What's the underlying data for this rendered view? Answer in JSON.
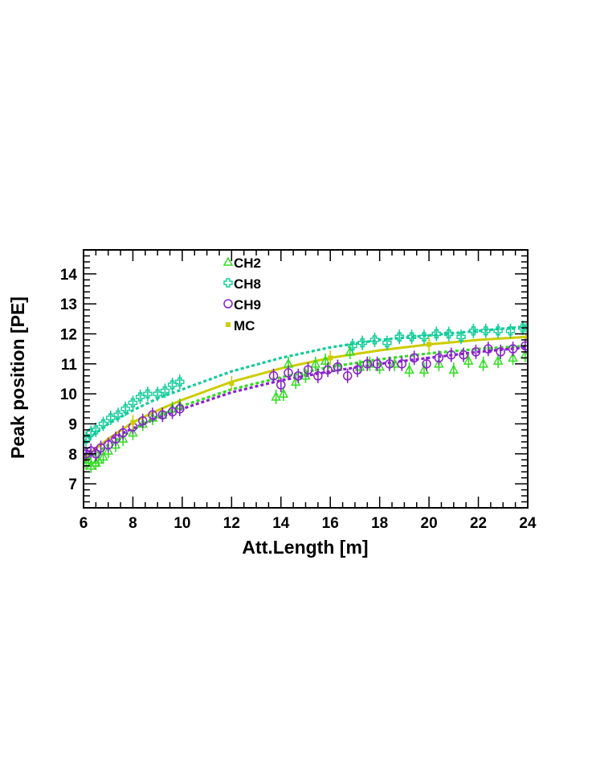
{
  "chart_data": {
    "type": "scatter",
    "title": "",
    "xlabel": "Att.Length [m]",
    "ylabel": "Peak position [PE]",
    "xlim": [
      6,
      24
    ],
    "ylim": [
      6.2,
      14.8
    ],
    "x_ticks": [
      "6",
      "8",
      "10",
      "12",
      "14",
      "16",
      "18",
      "20",
      "22",
      "24"
    ],
    "y_ticks": [
      "7",
      "8",
      "9",
      "10",
      "11",
      "12",
      "13",
      "14"
    ],
    "grid": false,
    "legend_position": "top-left",
    "series": [
      {
        "name": "CH2",
        "marker": "open-triangle",
        "color": "#33dd22",
        "fit_line": "dashed",
        "fit_curve": [
          [
            6.0,
            7.7
          ],
          [
            7.0,
            8.3
          ],
          [
            8.0,
            8.8
          ],
          [
            9.0,
            9.25
          ],
          [
            10.0,
            9.6
          ],
          [
            12.0,
            10.15
          ],
          [
            14.0,
            10.55
          ],
          [
            16.0,
            10.9
          ],
          [
            18.0,
            11.15
          ],
          [
            20.0,
            11.35
          ],
          [
            22.0,
            11.5
          ],
          [
            24.0,
            11.6
          ]
        ],
        "points": [
          [
            6.1,
            7.7
          ],
          [
            6.2,
            7.8
          ],
          [
            6.3,
            7.6
          ],
          [
            6.5,
            7.7
          ],
          [
            6.6,
            7.8
          ],
          [
            6.8,
            7.9
          ],
          [
            7.0,
            8.1
          ],
          [
            7.3,
            8.3
          ],
          [
            7.6,
            8.5
          ],
          [
            8.0,
            8.7
          ],
          [
            8.4,
            9.0
          ],
          [
            8.8,
            9.2
          ],
          [
            9.2,
            9.3
          ],
          [
            9.6,
            9.5
          ],
          [
            9.9,
            9.6
          ],
          [
            13.8,
            9.9
          ],
          [
            14.1,
            10.0
          ],
          [
            14.3,
            11.0
          ],
          [
            14.6,
            10.4
          ],
          [
            15.0,
            10.6
          ],
          [
            15.4,
            11.0
          ],
          [
            15.8,
            11.1
          ],
          [
            16.3,
            10.9
          ],
          [
            16.8,
            11.4
          ],
          [
            17.2,
            10.9
          ],
          [
            17.6,
            11.0
          ],
          [
            18.0,
            10.9
          ],
          [
            18.6,
            11.0
          ],
          [
            19.2,
            10.8
          ],
          [
            19.8,
            10.8
          ],
          [
            20.4,
            11.0
          ],
          [
            21.0,
            10.8
          ],
          [
            21.6,
            11.1
          ],
          [
            22.2,
            11.0
          ],
          [
            22.8,
            11.1
          ],
          [
            23.4,
            11.2
          ],
          [
            23.9,
            11.3
          ]
        ]
      },
      {
        "name": "CH8",
        "marker": "open-cross",
        "color": "#11cc99",
        "fit_line": "dashed",
        "fit_curve": [
          [
            6.0,
            8.4
          ],
          [
            7.0,
            9.0
          ],
          [
            8.0,
            9.45
          ],
          [
            9.0,
            9.85
          ],
          [
            10.0,
            10.15
          ],
          [
            12.0,
            10.75
          ],
          [
            14.0,
            11.2
          ],
          [
            16.0,
            11.55
          ],
          [
            18.0,
            11.8
          ],
          [
            20.0,
            11.95
          ],
          [
            22.0,
            12.1
          ],
          [
            24.0,
            12.25
          ]
        ],
        "points": [
          [
            6.1,
            8.5
          ],
          [
            6.3,
            8.7
          ],
          [
            6.5,
            8.8
          ],
          [
            6.8,
            9.0
          ],
          [
            7.1,
            9.2
          ],
          [
            7.4,
            9.3
          ],
          [
            7.7,
            9.5
          ],
          [
            8.0,
            9.7
          ],
          [
            8.3,
            9.9
          ],
          [
            8.6,
            10.0
          ],
          [
            9.0,
            10.0
          ],
          [
            9.3,
            10.1
          ],
          [
            9.6,
            10.3
          ],
          [
            9.9,
            10.4
          ],
          [
            16.9,
            11.6
          ],
          [
            17.3,
            11.7
          ],
          [
            17.8,
            11.8
          ],
          [
            18.3,
            11.7
          ],
          [
            18.8,
            11.9
          ],
          [
            19.3,
            11.9
          ],
          [
            19.8,
            11.9
          ],
          [
            20.3,
            12.0
          ],
          [
            20.8,
            12.0
          ],
          [
            21.3,
            11.9
          ],
          [
            21.8,
            12.1
          ],
          [
            22.3,
            12.1
          ],
          [
            22.8,
            12.1
          ],
          [
            23.3,
            12.1
          ],
          [
            23.8,
            12.2
          ],
          [
            24.0,
            12.2
          ]
        ]
      },
      {
        "name": "CH9",
        "marker": "open-circle",
        "color": "#8822cc",
        "fit_line": "dashed",
        "fit_curve": [
          [
            6.0,
            7.95
          ],
          [
            7.0,
            8.45
          ],
          [
            8.0,
            8.85
          ],
          [
            9.0,
            9.2
          ],
          [
            10.0,
            9.5
          ],
          [
            12.0,
            10.05
          ],
          [
            14.0,
            10.45
          ],
          [
            16.0,
            10.75
          ],
          [
            18.0,
            11.0
          ],
          [
            20.0,
            11.2
          ],
          [
            22.0,
            11.4
          ],
          [
            24.0,
            11.55
          ]
        ],
        "points": [
          [
            6.1,
            8.0
          ],
          [
            6.3,
            8.1
          ],
          [
            6.5,
            8.0
          ],
          [
            6.7,
            8.2
          ],
          [
            7.0,
            8.3
          ],
          [
            7.3,
            8.5
          ],
          [
            7.6,
            8.7
          ],
          [
            8.0,
            8.9
          ],
          [
            8.4,
            9.1
          ],
          [
            8.8,
            9.3
          ],
          [
            9.2,
            9.3
          ],
          [
            9.6,
            9.4
          ],
          [
            9.9,
            9.5
          ],
          [
            13.7,
            10.6
          ],
          [
            14.0,
            10.3
          ],
          [
            14.3,
            10.7
          ],
          [
            14.7,
            10.6
          ],
          [
            15.1,
            10.8
          ],
          [
            15.5,
            10.6
          ],
          [
            15.9,
            10.8
          ],
          [
            16.3,
            10.9
          ],
          [
            16.7,
            10.6
          ],
          [
            17.1,
            10.8
          ],
          [
            17.5,
            11.0
          ],
          [
            17.9,
            11.0
          ],
          [
            18.4,
            11.0
          ],
          [
            18.9,
            11.0
          ],
          [
            19.4,
            11.2
          ],
          [
            19.9,
            11.0
          ],
          [
            20.4,
            11.2
          ],
          [
            20.9,
            11.3
          ],
          [
            21.4,
            11.3
          ],
          [
            21.9,
            11.4
          ],
          [
            22.4,
            11.5
          ],
          [
            22.9,
            11.4
          ],
          [
            23.4,
            11.5
          ],
          [
            23.9,
            11.6
          ]
        ]
      },
      {
        "name": "MC",
        "marker": "filled-square",
        "color": "#cccc00",
        "fit_line": "solid",
        "fit_curve": [
          [
            6.0,
            7.85
          ],
          [
            7.0,
            8.5
          ],
          [
            8.0,
            9.05
          ],
          [
            9.0,
            9.45
          ],
          [
            10.0,
            9.8
          ],
          [
            12.0,
            10.4
          ],
          [
            14.0,
            10.85
          ],
          [
            16.0,
            11.2
          ],
          [
            18.0,
            11.45
          ],
          [
            20.0,
            11.65
          ],
          [
            22.0,
            11.8
          ],
          [
            24.0,
            11.9
          ]
        ],
        "points": [
          [
            8.0,
            9.05
          ],
          [
            12.0,
            10.35
          ],
          [
            16.0,
            11.2
          ],
          [
            20.0,
            11.65
          ],
          [
            24.0,
            11.9
          ]
        ]
      }
    ]
  }
}
